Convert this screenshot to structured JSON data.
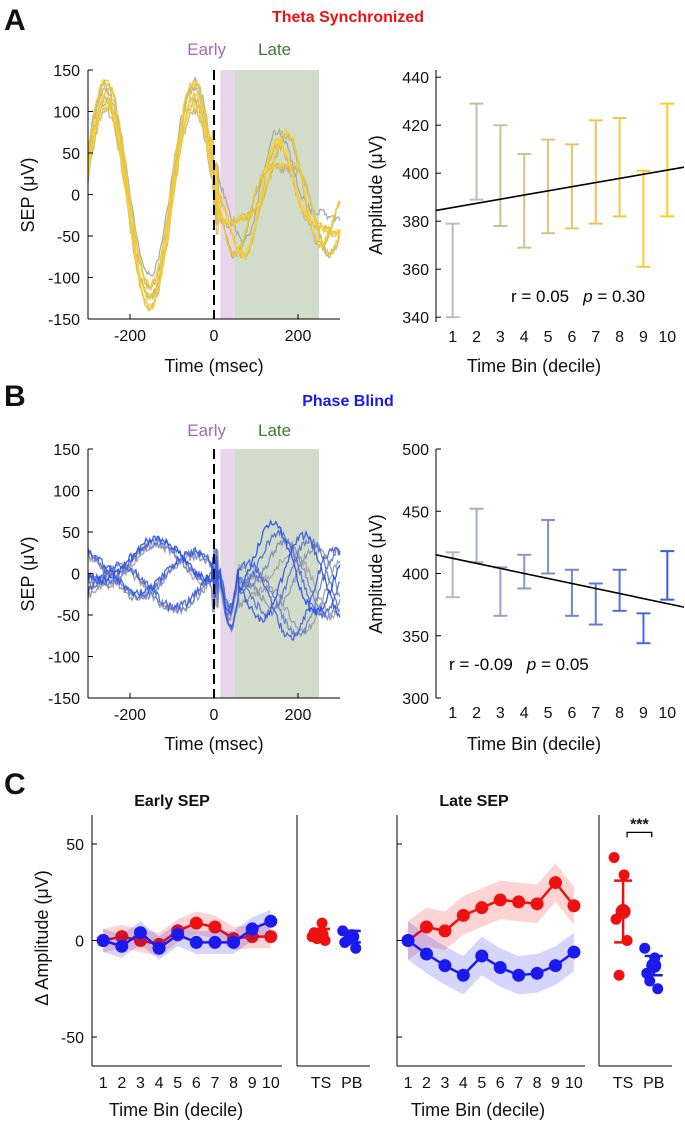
{
  "colors": {
    "ts": "#ee1111",
    "pb": "#1a1aee",
    "early": "#e7d6ea",
    "late": "#d1dccb",
    "early_text": "#a668b4",
    "late_text": "#3e7a34",
    "fit": "#000000"
  },
  "labels": {
    "panel_a": "A",
    "panel_b": "B",
    "panel_c": "C",
    "title_a": "Theta Synchronized",
    "title_b": "Phase Blind",
    "early": "Early",
    "late": "Late",
    "sep_axis": "SEP (μV)",
    "time_axis": "Time (msec)",
    "amp_axis": "Amplitude (μV)",
    "bin_axis": "Time Bin (decile)",
    "delta_axis": "Δ Amplitude (μV)",
    "early_sep": "Early SEP",
    "late_sep": "Late SEP",
    "ts": "TS",
    "pb": "PB",
    "sig": "***"
  },
  "chart_data": [
    {
      "id": "A-left",
      "type": "line",
      "title": "Theta Synchronized",
      "xlabel": "Time (msec)",
      "ylabel": "SEP (μV)",
      "xlim": [
        -300,
        300
      ],
      "ylim": [
        -150,
        150
      ],
      "xticks": [
        -200,
        0,
        200
      ],
      "yticks": [
        150,
        100,
        50,
        0,
        -50,
        -100,
        -150
      ],
      "early_window_ms": [
        15,
        50
      ],
      "late_window_ms": [
        50,
        250
      ],
      "n_traces": 10,
      "color_from": "#a8a8a8",
      "color_to": "#ffd21e"
    },
    {
      "id": "A-right",
      "type": "errorbar",
      "xlabel": "Time Bin (decile)",
      "ylabel": "Amplitude (μV)",
      "ylim": [
        338,
        443
      ],
      "yticks": [
        440,
        420,
        400,
        380,
        360,
        340
      ],
      "x": [
        1,
        2,
        3,
        4,
        5,
        6,
        7,
        8,
        9,
        10
      ],
      "lower": [
        340,
        389,
        378,
        369,
        375,
        377,
        379,
        382,
        361,
        382
      ],
      "upper": [
        379,
        429,
        420,
        408,
        414,
        412,
        422,
        423,
        401,
        429
      ],
      "fit": {
        "x": [
          0.3,
          10.7
        ],
        "y": [
          384.5,
          402.5
        ]
      },
      "stat_r": "r = 0.05",
      "stat_p_label": "p",
      "stat_p_value": " = 0.30",
      "color_from": "#bdbdbd",
      "color_to": "#ffcc22"
    },
    {
      "id": "B-left",
      "type": "line",
      "title": "Phase Blind",
      "xlabel": "Time (msec)",
      "ylabel": "SEP (μV)",
      "xlim": [
        -300,
        300
      ],
      "ylim": [
        -150,
        150
      ],
      "xticks": [
        -200,
        0,
        200
      ],
      "yticks": [
        150,
        100,
        50,
        0,
        -50,
        -100,
        -150
      ],
      "early_window_ms": [
        15,
        50
      ],
      "late_window_ms": [
        50,
        250
      ],
      "n_traces": 10,
      "color_from": "#a8a8a8",
      "color_to": "#2a52e6"
    },
    {
      "id": "B-right",
      "type": "errorbar",
      "xlabel": "Time Bin (decile)",
      "ylabel": "Amplitude (μV)",
      "ylim": [
        300,
        500
      ],
      "yticks": [
        500,
        450,
        400,
        350,
        300
      ],
      "x": [
        1,
        2,
        3,
        4,
        5,
        6,
        7,
        8,
        9,
        10
      ],
      "lower": [
        381,
        409,
        366,
        388,
        400,
        366,
        359,
        370,
        344,
        379
      ],
      "upper": [
        417,
        452,
        405,
        415,
        443,
        403,
        392,
        403,
        368,
        418
      ],
      "fit": {
        "x": [
          0.3,
          10.7
        ],
        "y": [
          415,
          373
        ]
      },
      "stat_r": "r = -0.09",
      "stat_p_label": "p",
      "stat_p_value": " = 0.05",
      "color_from": "#b5b5c5",
      "color_to": "#3a5ee0"
    },
    {
      "id": "C-early",
      "type": "line",
      "title": "Early SEP",
      "xlabel": "Time Bin (decile)",
      "ylabel": "Δ Amplitude (μV)",
      "ylim": [
        -65,
        65
      ],
      "yticks": [
        50,
        0,
        -50
      ],
      "x": [
        1,
        2,
        3,
        4,
        5,
        6,
        7,
        8,
        9,
        10
      ],
      "series": [
        {
          "name": "TS",
          "values": [
            0,
            2,
            0,
            -2,
            5,
            9,
            7,
            1,
            2,
            2
          ],
          "band": 6
        },
        {
          "name": "PB",
          "values": [
            0,
            -3,
            4,
            -4,
            3,
            -1,
            -1,
            -1,
            6,
            10
          ],
          "band": 6
        }
      ]
    },
    {
      "id": "C-early-summary",
      "type": "scatter",
      "categories": [
        "TS",
        "PB"
      ],
      "points": {
        "TS": [
          2,
          9,
          4,
          0,
          1
        ],
        "PB": [
          5,
          2,
          -1,
          -4,
          0
        ]
      },
      "mean": {
        "TS": 3,
        "PB": 2
      },
      "err": {
        "TS": 3,
        "PB": 3
      }
    },
    {
      "id": "C-late",
      "type": "line",
      "title": "Late SEP",
      "xlabel": "Time Bin (decile)",
      "ylabel": "Δ Amplitude (μV)",
      "ylim": [
        -65,
        65
      ],
      "yticks": [
        50,
        0,
        -50
      ],
      "x": [
        1,
        2,
        3,
        4,
        5,
        6,
        7,
        8,
        9,
        10
      ],
      "series": [
        {
          "name": "TS",
          "values": [
            0,
            7,
            5,
            13,
            17,
            21,
            20,
            19,
            30,
            18
          ],
          "band": 10
        },
        {
          "name": "PB",
          "values": [
            0,
            -7,
            -13,
            -18,
            -8,
            -14,
            -18,
            -17,
            -13,
            -6
          ],
          "band": 10
        }
      ]
    },
    {
      "id": "C-late-summary",
      "type": "scatter",
      "categories": [
        "TS",
        "PB"
      ],
      "points": {
        "TS": [
          43,
          34,
          11,
          0,
          -18
        ],
        "PB": [
          -4,
          -9,
          -17,
          -25,
          -21
        ]
      },
      "mean": {
        "TS": 15,
        "PB": -13
      },
      "err": {
        "TS": 16,
        "PB": 5
      },
      "significance": "***"
    }
  ]
}
